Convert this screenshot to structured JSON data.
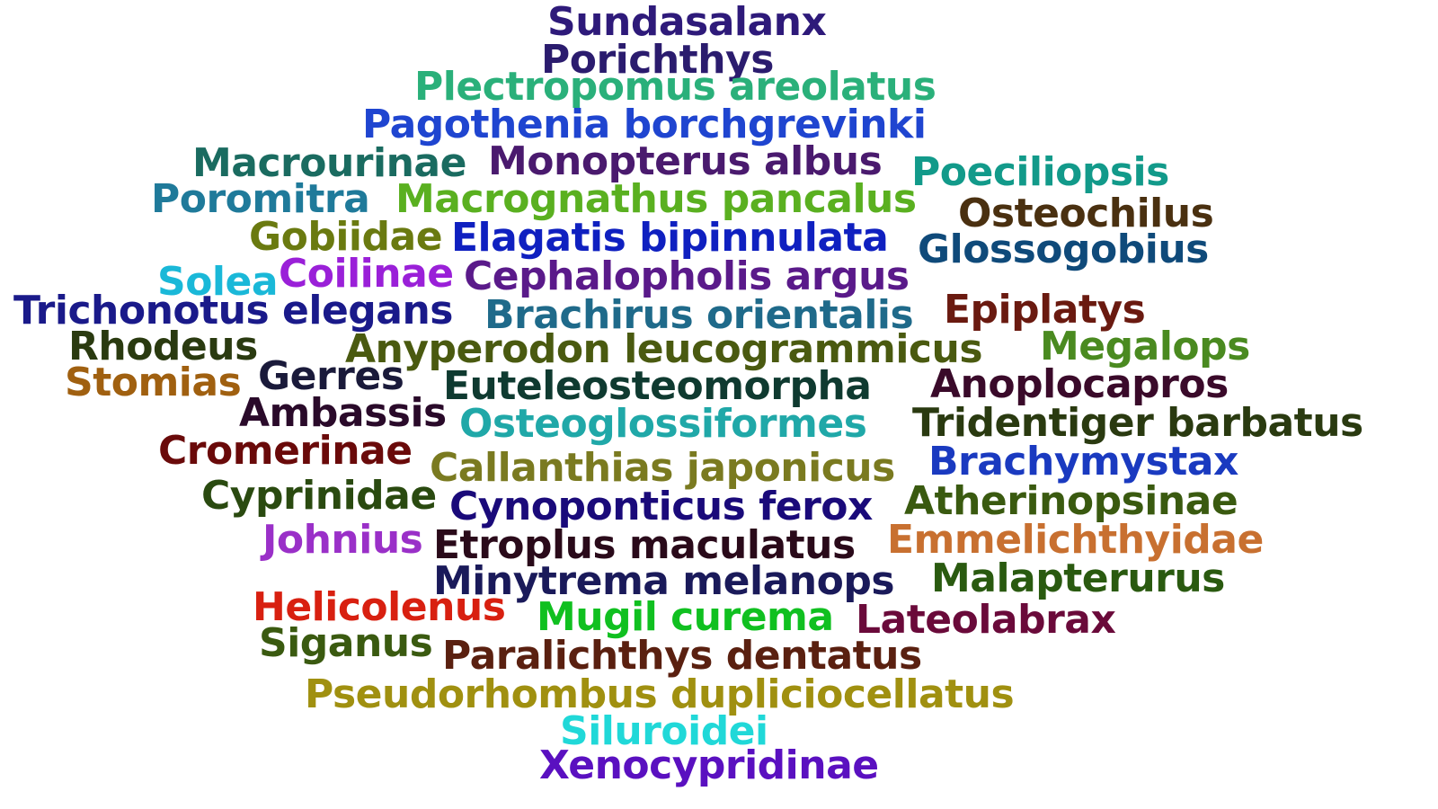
{
  "words": [
    {
      "text": "Sundasalanx",
      "color": "#2e1a7a"
    },
    {
      "text": "Porichthys",
      "color": "#2b1c6e"
    },
    {
      "text": "Plectropomus areolatus",
      "color": "#2ab07a"
    },
    {
      "text": "Pagothenia borchgrevinki",
      "color": "#1f45d0"
    },
    {
      "text": "Macrourinae",
      "color": "#1a6b60"
    },
    {
      "text": "Monopterus albus",
      "color": "#4a1a6e"
    },
    {
      "text": "Poeciliopsis",
      "color": "#129a8a"
    },
    {
      "text": "Poromitra",
      "color": "#1f7a9a"
    },
    {
      "text": "Macrognathus pancalus",
      "color": "#5ab020"
    },
    {
      "text": "Osteochilus",
      "color": "#4a3010"
    },
    {
      "text": "Gobiidae",
      "color": "#6a7a10"
    },
    {
      "text": "Elagatis bipinnulata",
      "color": "#0f20c0"
    },
    {
      "text": "Glossogobius",
      "color": "#0f4a7a"
    },
    {
      "text": "Solea",
      "color": "#1ab8d8"
    },
    {
      "text": "Coilinae",
      "color": "#9a20d8"
    },
    {
      "text": "Cephalopholis argus",
      "color": "#5a1a8a"
    },
    {
      "text": "Trichonotus elegans",
      "color": "#1a1a8a"
    },
    {
      "text": "Brachirus orientalis",
      "color": "#1f6a8a"
    },
    {
      "text": "Epiplatys",
      "color": "#6a1a10"
    },
    {
      "text": "Rhodeus",
      "color": "#2a3a10"
    },
    {
      "text": "Anyperodon leucogrammicus",
      "color": "#4a5a10"
    },
    {
      "text": "Megalops",
      "color": "#4a8a20"
    },
    {
      "text": "Stomias",
      "color": "#a06010"
    },
    {
      "text": "Gerres",
      "color": "#1a1a3a"
    },
    {
      "text": "Euteleosteomorpha",
      "color": "#0f3a30"
    },
    {
      "text": "Anoplocapros",
      "color": "#3a0a2a"
    },
    {
      "text": "Ambassis",
      "color": "#2a0a2a"
    },
    {
      "text": "Osteoglossiformes",
      "color": "#20a8a8"
    },
    {
      "text": "Tridentiger barbatus",
      "color": "#2a3a10"
    },
    {
      "text": "Cromerinae",
      "color": "#6a0a0a"
    },
    {
      "text": "Callanthias japonicus",
      "color": "#7a7a20"
    },
    {
      "text": "Brachymystax",
      "color": "#1a3ac0"
    },
    {
      "text": "Cyprinidae",
      "color": "#2a4a10"
    },
    {
      "text": "Cynoponticus ferox",
      "color": "#1a0a7a"
    },
    {
      "text": "Atherinopsinae",
      "color": "#3a5a10"
    },
    {
      "text": "Johnius",
      "color": "#9a30c8"
    },
    {
      "text": "Etroplus maculatus",
      "color": "#2a0a1a"
    },
    {
      "text": "Emmelichthyidae",
      "color": "#c87030"
    },
    {
      "text": "Minytrema melanops",
      "color": "#1a1a5a"
    },
    {
      "text": "Malapterurus",
      "color": "#2a5a10"
    },
    {
      "text": "Helicolenus",
      "color": "#d82010"
    },
    {
      "text": "Mugil curema",
      "color": "#10c020"
    },
    {
      "text": "Lateolabrax",
      "color": "#6a0a3a"
    },
    {
      "text": "Siganus",
      "color": "#3a5a10"
    },
    {
      "text": "Paralichthys dentatus",
      "color": "#5a2010"
    },
    {
      "text": "Pseudorhombus dupliciocellatus",
      "color": "#a09010"
    },
    {
      "text": "Siluroidei",
      "color": "#20d8d8"
    },
    {
      "text": "Xenocypridinae",
      "color": "#5a10c0"
    }
  ]
}
